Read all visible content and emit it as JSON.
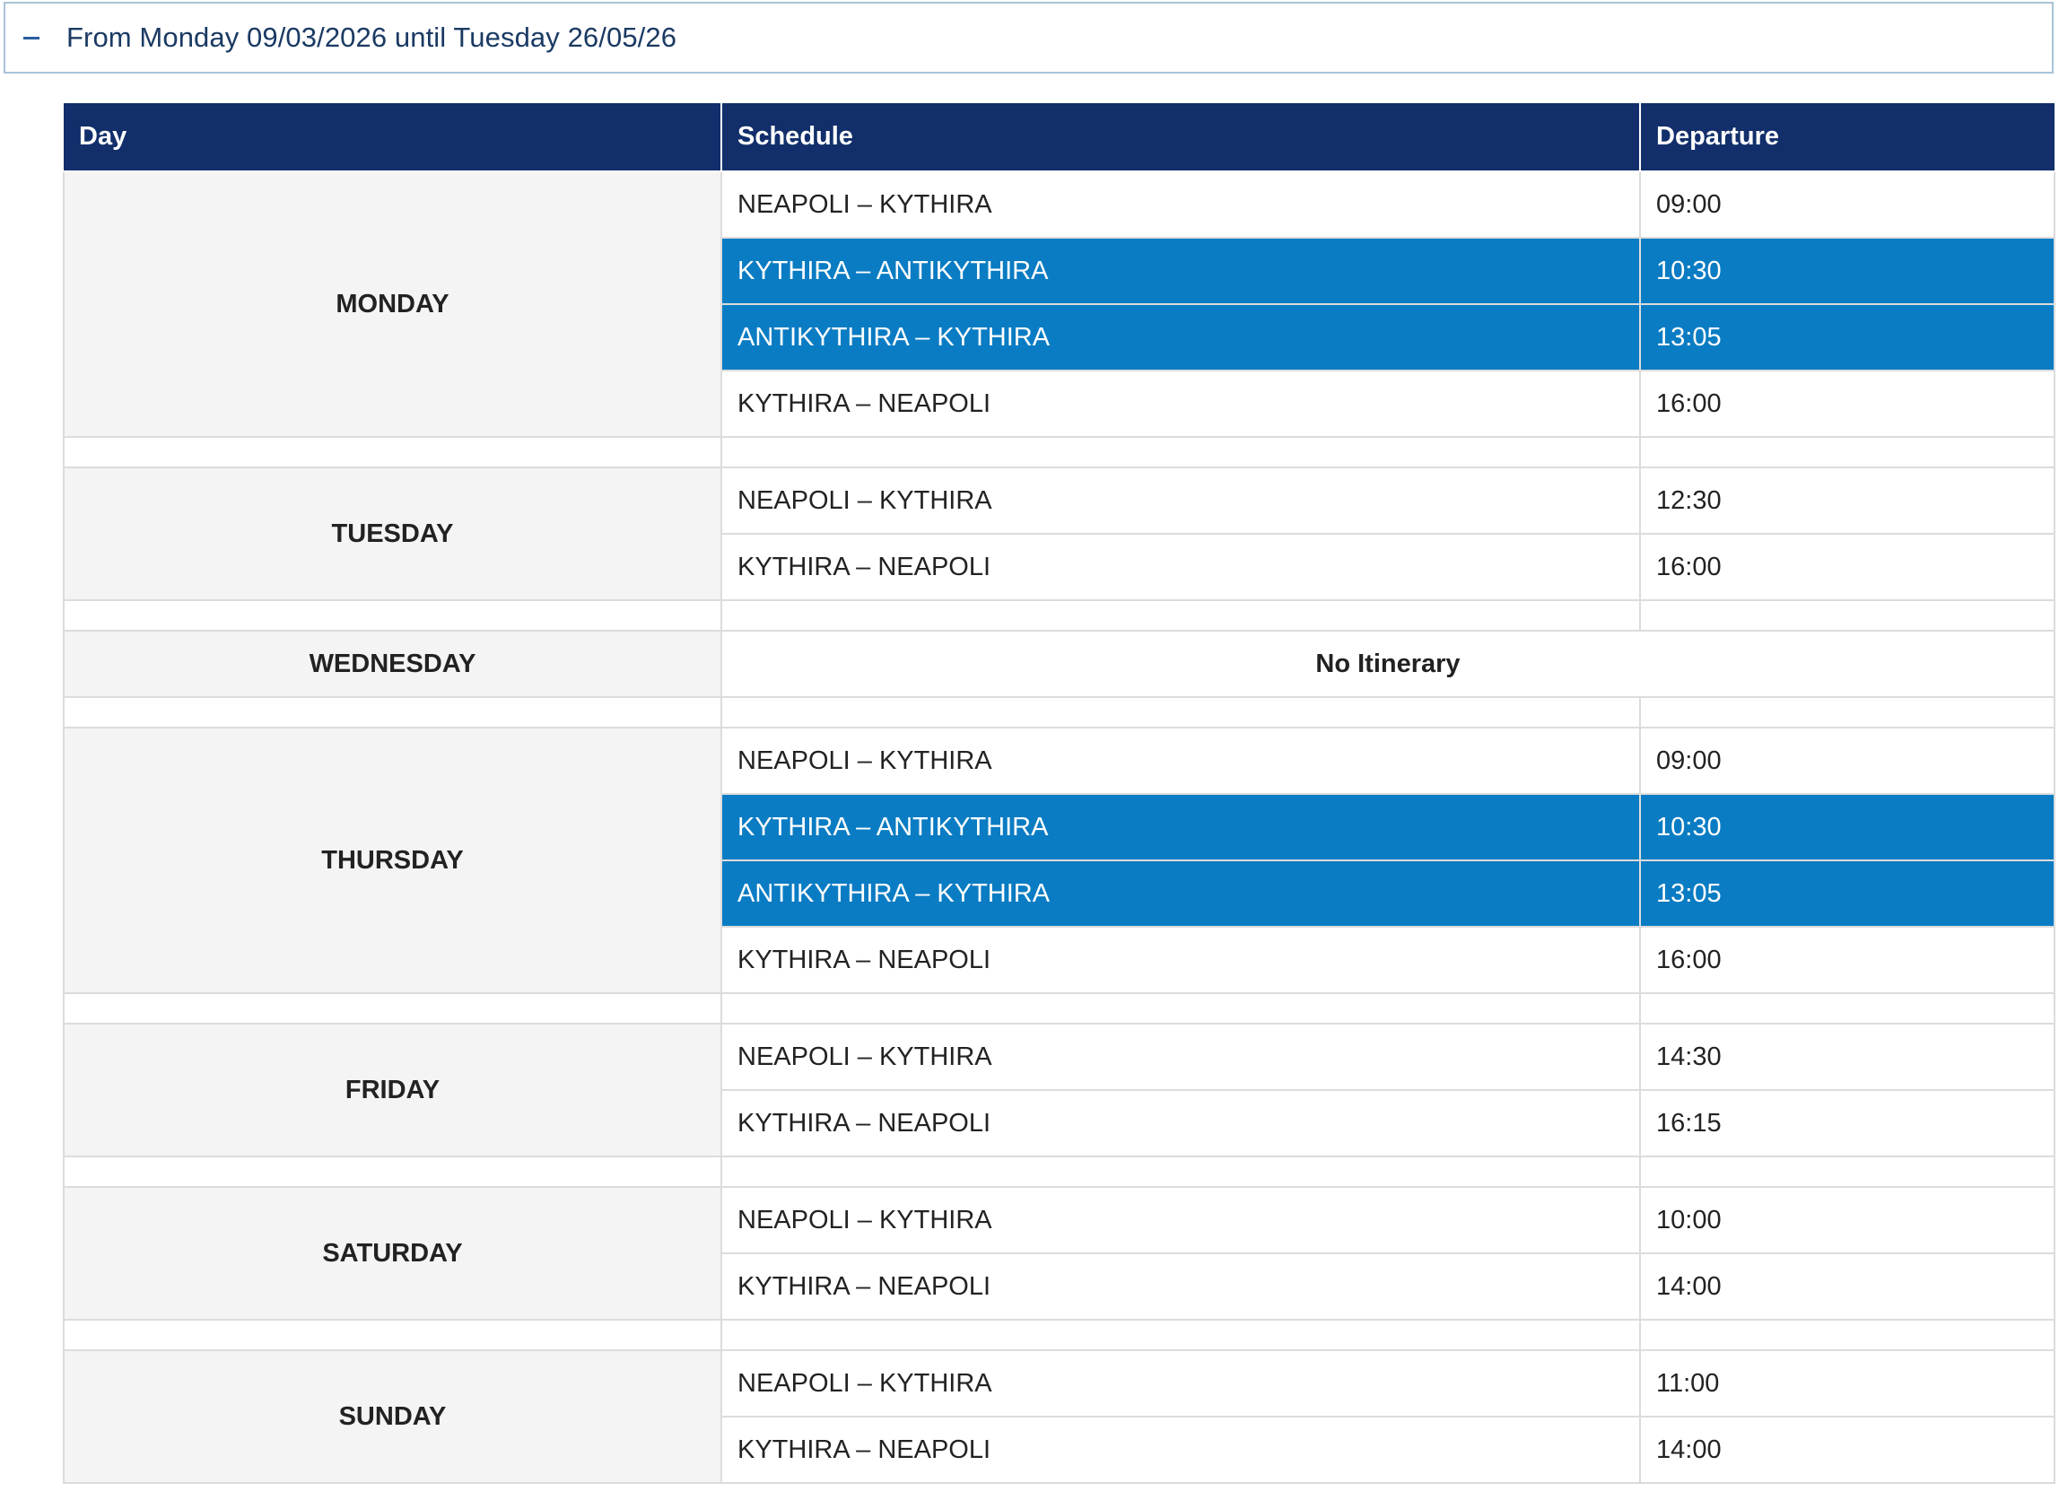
{
  "accordion": {
    "toggle_icon": "minus-icon",
    "title": "From Monday 09/03/2026 until Tuesday 26/05/26"
  },
  "colors": {
    "header_bg": "#122f6b",
    "highlight_bg": "#0a7cc3",
    "day_cell_bg": "#f4f4f4",
    "title_text": "#1a3a63"
  },
  "table": {
    "headers": {
      "day": "Day",
      "schedule": "Schedule",
      "departure": "Departure"
    },
    "days": [
      {
        "name": "MONDAY",
        "trips": [
          {
            "route": "NEAPOLI – KYTHIRA",
            "departure": "09:00",
            "highlight": false
          },
          {
            "route": "KYTHIRA – ANTIKYTHIRA",
            "departure": "10:30",
            "highlight": true
          },
          {
            "route": "ANTIKYTHIRA – KYTHIRA",
            "departure": "13:05",
            "highlight": true
          },
          {
            "route": "KYTHIRA – NEAPOLI",
            "departure": "16:00",
            "highlight": false
          }
        ]
      },
      {
        "name": "TUESDAY",
        "trips": [
          {
            "route": "NEAPOLI – KYTHIRA",
            "departure": "12:30",
            "highlight": false
          },
          {
            "route": "KYTHIRA – NEAPOLI",
            "departure": "16:00",
            "highlight": false
          }
        ]
      },
      {
        "name": "WEDNESDAY",
        "no_itinerary": "No Itinerary",
        "trips": []
      },
      {
        "name": "THURSDAY",
        "trips": [
          {
            "route": "NEAPOLI – KYTHIRA",
            "departure": "09:00",
            "highlight": false
          },
          {
            "route": "KYTHIRA – ANTIKYTHIRA",
            "departure": "10:30",
            "highlight": true
          },
          {
            "route": "ANTIKYTHIRA – KYTHIRA",
            "departure": "13:05",
            "highlight": true
          },
          {
            "route": "KYTHIRA – NEAPOLI",
            "departure": "16:00",
            "highlight": false
          }
        ]
      },
      {
        "name": "FRIDAY",
        "trips": [
          {
            "route": "NEAPOLI – KYTHIRA",
            "departure": "14:30",
            "highlight": false
          },
          {
            "route": "KYTHIRA – NEAPOLI",
            "departure": "16:15",
            "highlight": false
          }
        ]
      },
      {
        "name": "SATURDAY",
        "trips": [
          {
            "route": "NEAPOLI – KYTHIRA",
            "departure": "10:00",
            "highlight": false
          },
          {
            "route": "KYTHIRA – NEAPOLI",
            "departure": "14:00",
            "highlight": false
          }
        ]
      },
      {
        "name": "SUNDAY",
        "trips": [
          {
            "route": "NEAPOLI – KYTHIRA",
            "departure": "11:00",
            "highlight": false
          },
          {
            "route": "KYTHIRA – NEAPOLI",
            "departure": "14:00",
            "highlight": false
          }
        ]
      }
    ]
  }
}
